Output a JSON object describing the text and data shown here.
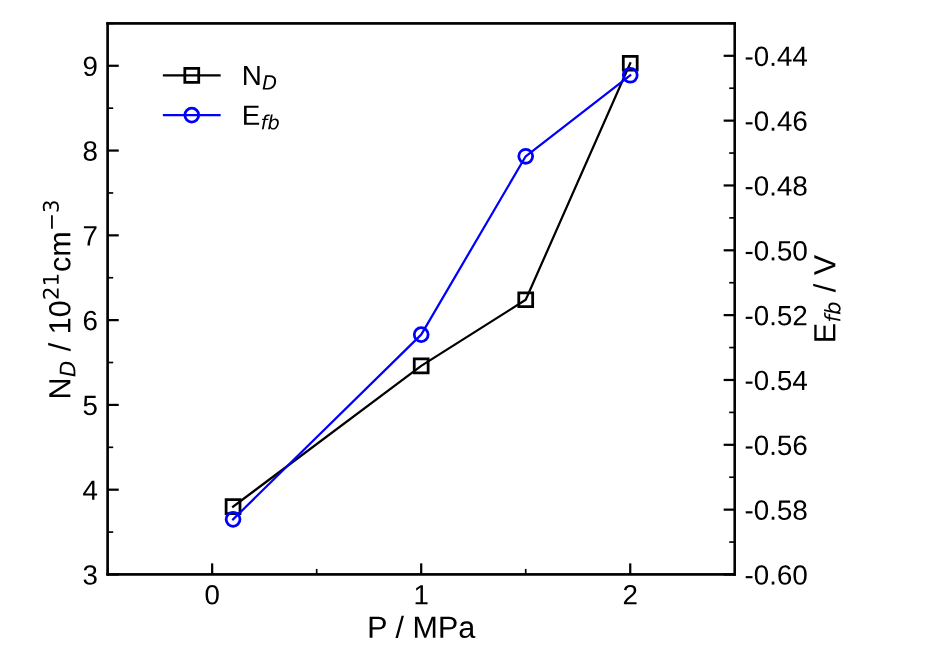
{
  "chart_data": {
    "type": "line",
    "xlabel": "P / MPa",
    "ylabel": "N$_{D}$ / 10$^{21}$cm$^{−3}$",
    "y2label": "E$_{fb}$ / V",
    "x": [
      0.1,
      1,
      1.5,
      2
    ],
    "series": [
      {
        "name": "N$_{D}$",
        "color": "#000000",
        "marker": "square",
        "values": [
          3.8,
          5.46,
          6.24,
          9.03
        ]
      },
      {
        "name": "E$_{fb}$",
        "color": "#0000ff",
        "marker": "circle",
        "axis": "y2",
        "values": [
          -0.583,
          -0.526,
          -0.471,
          -0.446
        ]
      }
    ],
    "xlim": [
      -0.5,
      2.5
    ],
    "xticks": [
      0,
      1,
      2
    ],
    "ylim": [
      3,
      9.5
    ],
    "yticks": [
      3,
      4,
      5,
      6,
      7,
      8,
      9
    ],
    "y2lim": [
      -0.6,
      -0.43
    ],
    "y2ticks": [
      {
        "value": -0.6,
        "label": "-0.60"
      },
      {
        "value": -0.58,
        "label": "-0.58"
      },
      {
        "value": -0.56,
        "label": "-0.56"
      },
      {
        "value": -0.54,
        "label": "-0.54"
      },
      {
        "value": -0.52,
        "label": "-0.52"
      },
      {
        "value": -0.5,
        "label": "-0.50"
      },
      {
        "value": -0.48,
        "label": "-0.48"
      },
      {
        "value": -0.46,
        "label": "-0.46"
      },
      {
        "value": -0.44,
        "label": "-0.44"
      }
    ],
    "grid": false,
    "legend": "top left",
    "line_style": "solid"
  }
}
